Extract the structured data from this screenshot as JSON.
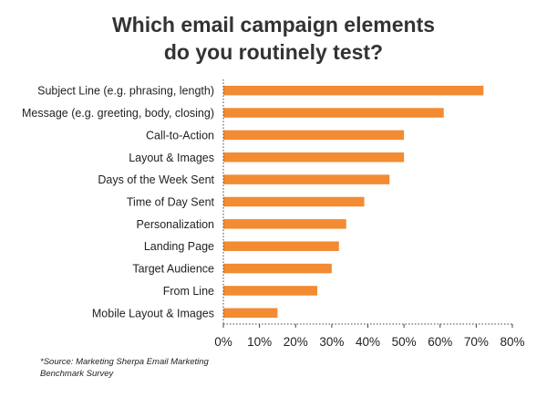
{
  "chart_data": {
    "type": "bar",
    "orientation": "horizontal",
    "title": "Which email campaign elements do you routinely test?",
    "title_lines": [
      "Which email campaign elements",
      "do you routinely test?"
    ],
    "categories": [
      "Subject Line (e.g. phrasing, length)",
      "Message (e.g. greeting, body, closing)",
      "Call-to-Action",
      "Layout & Images",
      "Days of the Week Sent",
      "Time of Day Sent",
      "Personalization",
      "Landing Page",
      "Target Audience",
      "From Line",
      "Mobile Layout & Images"
    ],
    "values": [
      72,
      61,
      50,
      50,
      46,
      39,
      34,
      32,
      30,
      26,
      15
    ],
    "xlim": [
      0,
      80
    ],
    "xticks": [
      "0%",
      "10%",
      "20%",
      "30%",
      "40%",
      "50%",
      "60%",
      "70%",
      "80%"
    ],
    "bar_color": "#F28B32",
    "axis_style": "dotted",
    "grid": false,
    "legend": "none",
    "source": "*Source: Marketing Sherpa Email Marketing Benchmark Survey"
  }
}
